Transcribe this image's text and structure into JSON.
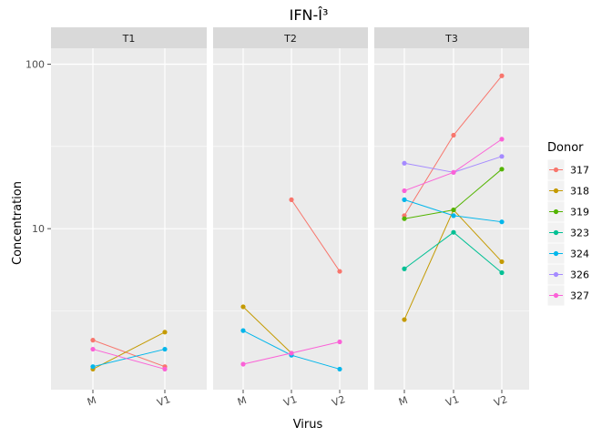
{
  "chart_data": {
    "type": "line",
    "title": "IFN-Î³",
    "xlabel": "Virus",
    "ylabel": "Concentration",
    "y_scale": "log10",
    "ylim": [
      1.05,
      125
    ],
    "y_ticks": [
      10,
      100
    ],
    "y_tick_labels": [
      "10",
      "100"
    ],
    "legend_title": "Donor",
    "legend_position": "right",
    "grid": true,
    "facets": [
      {
        "name": "T1",
        "categories": [
          "M",
          "V1"
        ],
        "series": [
          {
            "name": "317",
            "values": [
              2.1,
              1.45
            ]
          },
          {
            "name": "318",
            "values": [
              1.4,
              2.35
            ]
          },
          {
            "name": "324",
            "values": [
              1.45,
              1.85
            ]
          },
          {
            "name": "327",
            "values": [
              1.85,
              1.4
            ]
          }
        ]
      },
      {
        "name": "T2",
        "categories": [
          "M",
          "V1",
          "V2"
        ],
        "series": [
          {
            "name": "317",
            "values": [
              null,
              15,
              5.5
            ]
          },
          {
            "name": "318",
            "values": [
              3.35,
              1.75,
              null
            ]
          },
          {
            "name": "324",
            "values": [
              2.4,
              1.7,
              1.4
            ]
          },
          {
            "name": "327",
            "values": [
              1.5,
              1.75,
              2.05
            ]
          }
        ]
      },
      {
        "name": "T3",
        "categories": [
          "M",
          "V1",
          "V2"
        ],
        "series": [
          {
            "name": "317",
            "values": [
              12,
              37,
              85
            ]
          },
          {
            "name": "318",
            "values": [
              2.8,
              13,
              6.3
            ]
          },
          {
            "name": "319",
            "values": [
              11.5,
              13,
              23
            ]
          },
          {
            "name": "323",
            "values": [
              5.7,
              9.5,
              5.4
            ]
          },
          {
            "name": "324",
            "values": [
              15,
              12,
              11
            ]
          },
          {
            "name": "326",
            "values": [
              25,
              22,
              27.5
            ]
          },
          {
            "name": "327",
            "values": [
              17,
              22,
              35
            ]
          }
        ]
      }
    ],
    "donors": [
      {
        "name": "317",
        "color": "#F8766D"
      },
      {
        "name": "318",
        "color": "#C49A00"
      },
      {
        "name": "319",
        "color": "#53B400"
      },
      {
        "name": "323",
        "color": "#00C094"
      },
      {
        "name": "324",
        "color": "#00B6EB"
      },
      {
        "name": "326",
        "color": "#A58AFF"
      },
      {
        "name": "327",
        "color": "#FB61D7"
      }
    ]
  }
}
